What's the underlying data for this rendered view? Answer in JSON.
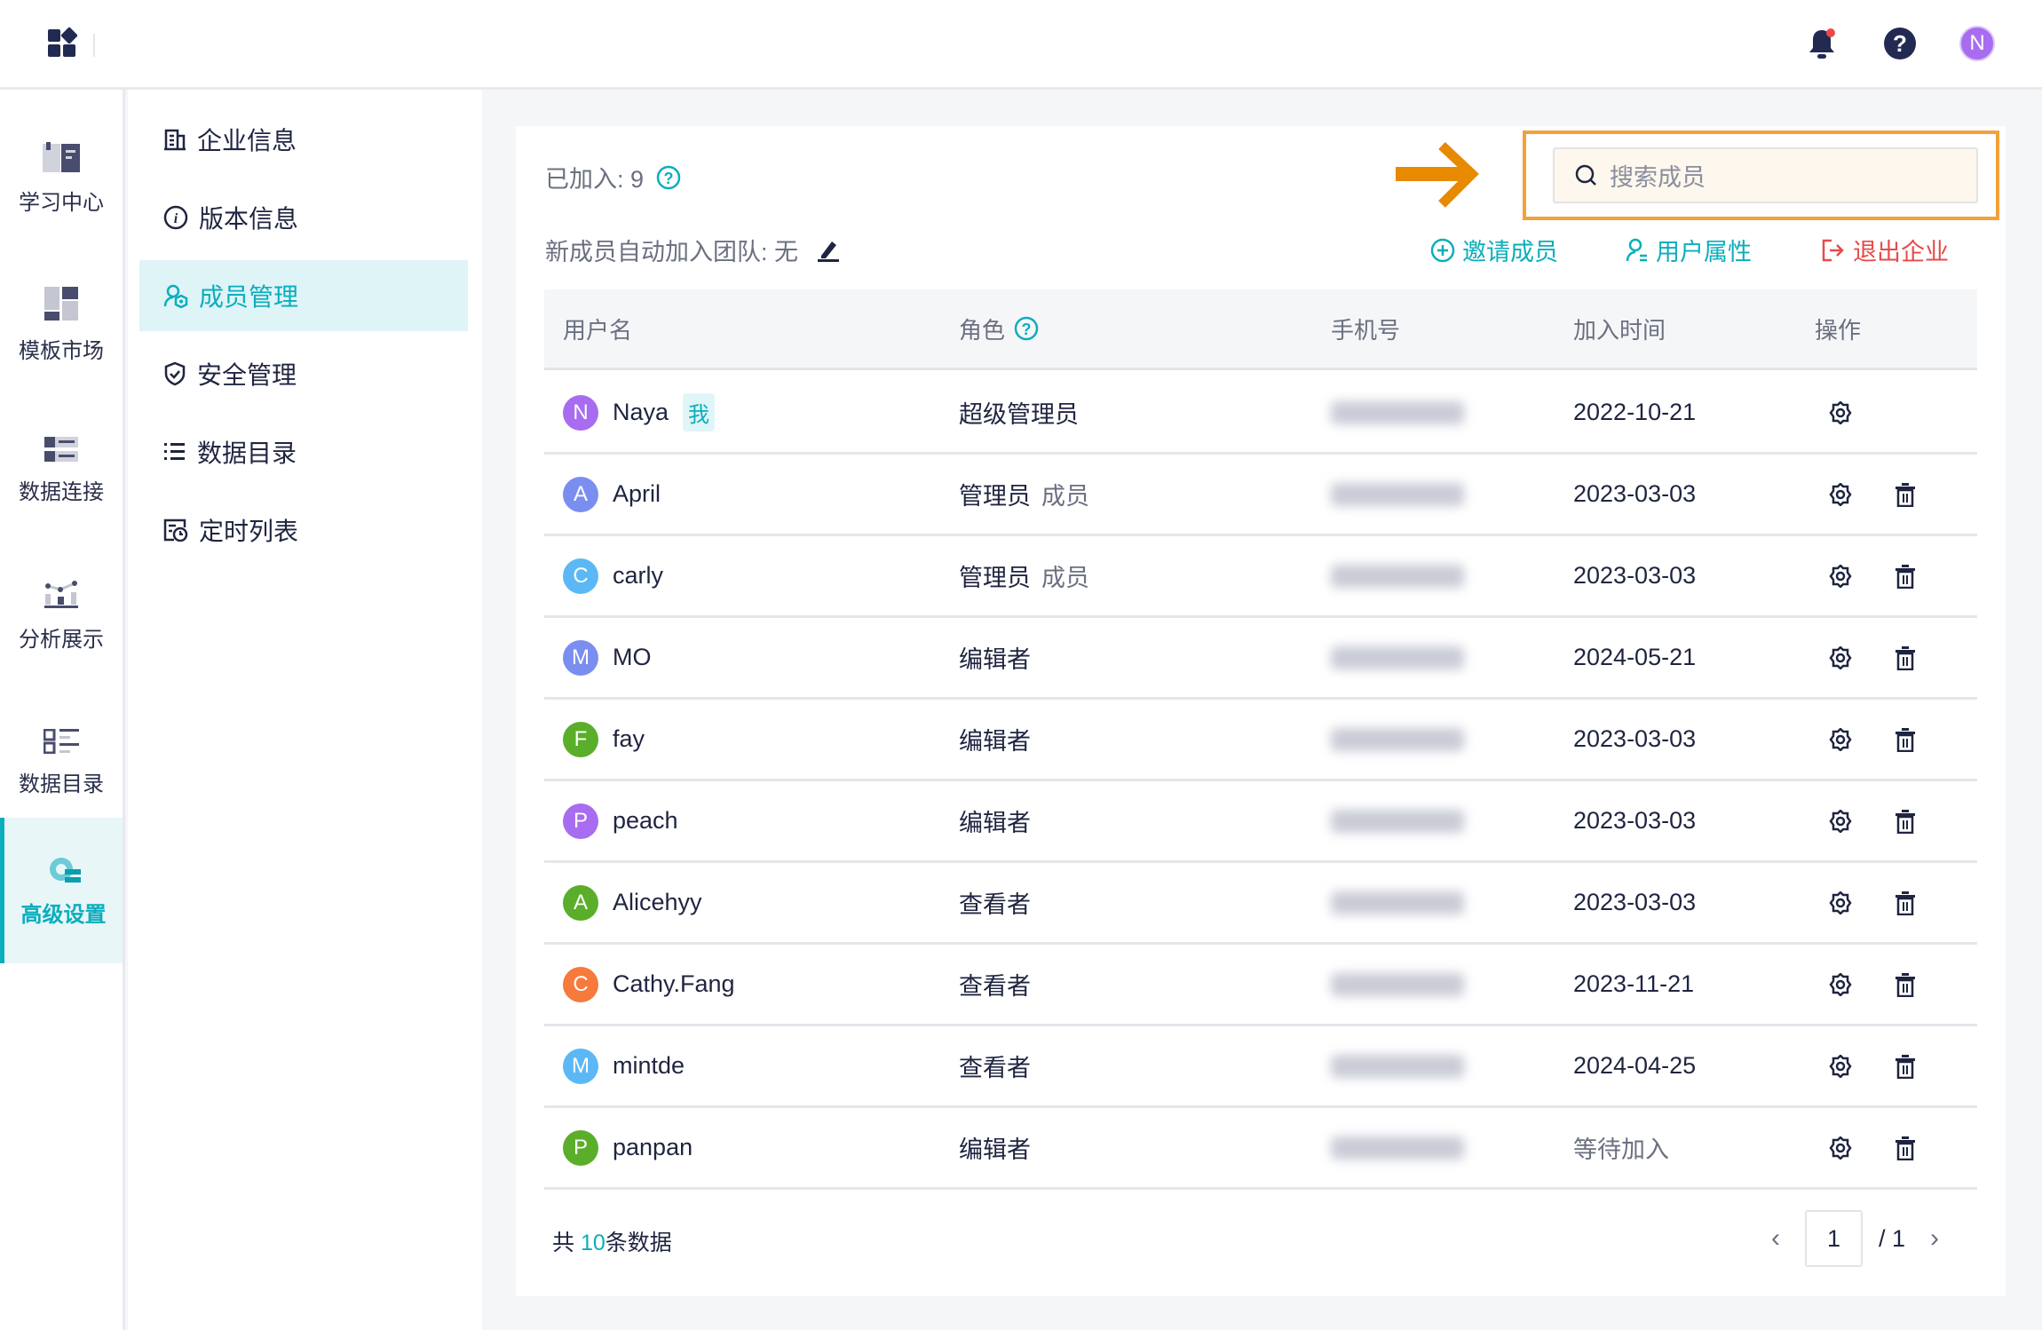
{
  "colors": {
    "accent": "#0aaebd",
    "danger": "#e84a4a",
    "highlight": "#f2a23a",
    "arrow": "#e88a00"
  },
  "rail": {
    "items": [
      {
        "label": "学习中心",
        "icon": "book-icon"
      },
      {
        "label": "模板市场",
        "icon": "template-icon"
      },
      {
        "label": "数据连接",
        "icon": "data-connect-icon"
      },
      {
        "label": "分析展示",
        "icon": "chart-icon"
      },
      {
        "label": "数据目录",
        "icon": "catalog-icon"
      },
      {
        "label": "高级设置",
        "icon": "gear-settings-icon",
        "active": true
      }
    ]
  },
  "subnav": {
    "items": [
      {
        "label": "企业信息",
        "icon": "building-icon"
      },
      {
        "label": "版本信息",
        "icon": "info-icon"
      },
      {
        "label": "成员管理",
        "icon": "members-icon",
        "active": true
      },
      {
        "label": "安全管理",
        "icon": "shield-icon"
      },
      {
        "label": "数据目录",
        "icon": "list-icon"
      },
      {
        "label": "定时列表",
        "icon": "schedule-icon"
      }
    ]
  },
  "header": {
    "avatar": "N"
  },
  "main": {
    "joined_label": "已加入: 9",
    "auto_join_label": "新成员自动加入团队: 无",
    "search_placeholder": "搜索成员",
    "actions": {
      "invite": "邀请成员",
      "attributes": "用户属性",
      "leave": "退出企业"
    },
    "columns": [
      "用户名",
      "角色",
      "手机号",
      "加入时间",
      "操作"
    ],
    "me_badge": "我",
    "rows": [
      {
        "initial": "N",
        "name": "Naya",
        "color": "#a86cf0",
        "role": "超级管理员",
        "role2": "",
        "joined": "2022-10-21",
        "me": true,
        "deletable": false
      },
      {
        "initial": "A",
        "name": "April",
        "color": "#7a8ef0",
        "role": "管理员",
        "role2": "成员",
        "joined": "2023-03-03"
      },
      {
        "initial": "C",
        "name": "carly",
        "color": "#5bb8f5",
        "role": "管理员",
        "role2": "成员",
        "joined": "2023-03-03"
      },
      {
        "initial": "M",
        "name": "MO",
        "color": "#7a8ef0",
        "role": "编辑者",
        "role2": "",
        "joined": "2024-05-21"
      },
      {
        "initial": "F",
        "name": "fay",
        "color": "#5aae2a",
        "role": "编辑者",
        "role2": "",
        "joined": "2023-03-03"
      },
      {
        "initial": "P",
        "name": "peach",
        "color": "#a86cf0",
        "role": "编辑者",
        "role2": "",
        "joined": "2023-03-03"
      },
      {
        "initial": "A",
        "name": "Alicehyy",
        "color": "#5aae2a",
        "role": "查看者",
        "role2": "",
        "joined": "2023-03-03"
      },
      {
        "initial": "C",
        "name": "Cathy.Fang",
        "color": "#f57a3c",
        "role": "查看者",
        "role2": "",
        "joined": "2023-11-21"
      },
      {
        "initial": "M",
        "name": "mintde",
        "color": "#5bb8f5",
        "role": "查看者",
        "role2": "",
        "joined": "2024-04-25"
      },
      {
        "initial": "P",
        "name": "panpan",
        "color": "#5aae2a",
        "role": "编辑者",
        "role2": "",
        "joined": "等待加入",
        "pending": true
      }
    ],
    "footer": {
      "prefix": "共",
      "count": "10",
      "suffix": "条数据",
      "page": "1",
      "total_pages": "/ 1"
    }
  }
}
